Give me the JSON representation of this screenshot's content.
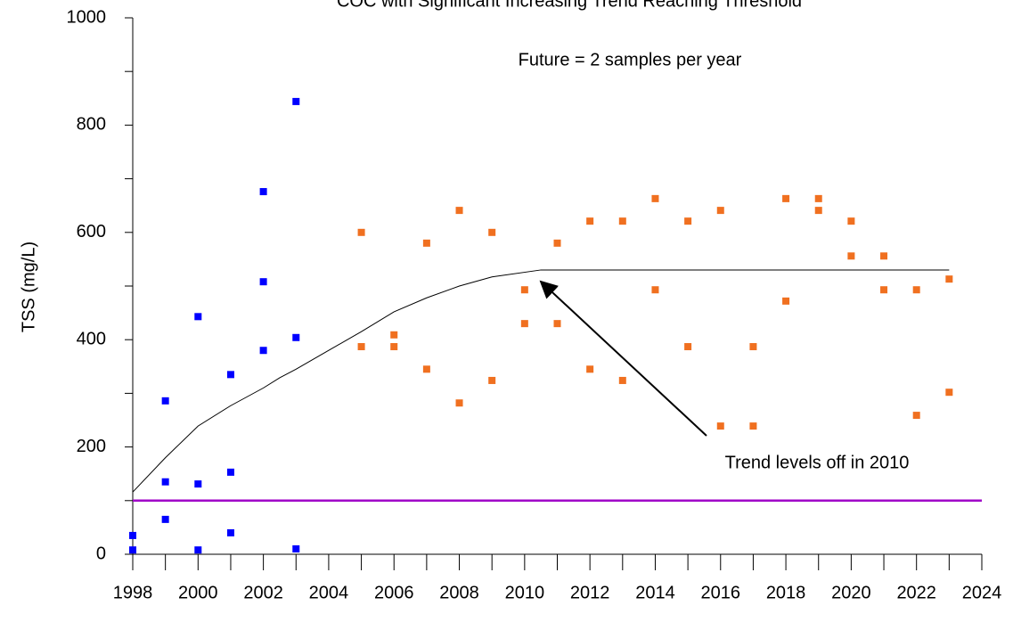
{
  "chart_data": {
    "type": "scatter",
    "title": "COC with Significant Increasing Trend Reaching Threshold",
    "y_label": "TSS (mg/L)",
    "annotations": [
      "Future = 2 samples per year",
      "Trend levels off in 2010"
    ],
    "xlim": [
      1998,
      2024
    ],
    "ylim": [
      0,
      1000
    ],
    "xticks": [
      1998,
      2000,
      2002,
      2004,
      2006,
      2008,
      2010,
      2012,
      2014,
      2016,
      2018,
      2020,
      2022,
      2024
    ],
    "xminorticks": [
      1999,
      2001,
      2003,
      2005,
      2007,
      2009,
      2011,
      2013,
      2015,
      2017,
      2019,
      2021,
      2023
    ],
    "yticks": [
      0,
      200,
      400,
      600,
      800,
      1000
    ],
    "yminorticks": [
      100,
      300,
      500,
      700,
      900
    ],
    "series": [
      {
        "mode": "markers",
        "color": "#0000ff",
        "x": [
          1998,
          1998,
          1999,
          1999,
          1999,
          2000,
          2000,
          2000,
          2001,
          2001,
          2001,
          2002,
          2002,
          2002,
          2003,
          2003,
          2003
        ],
        "values": [
          35,
          8,
          286,
          135,
          65,
          443,
          131,
          8,
          335,
          153,
          40,
          676,
          508,
          380,
          844,
          404,
          10
        ]
      },
      {
        "mode": "markers",
        "color": "#f07020",
        "x": [
          2005,
          2005,
          2006,
          2006,
          2007,
          2007,
          2008,
          2008,
          2009,
          2009,
          2010,
          2010,
          2011,
          2011,
          2012,
          2012,
          2013,
          2013,
          2014,
          2014,
          2015,
          2015,
          2016,
          2016,
          2017,
          2017,
          2018,
          2018,
          2019,
          2019,
          2020,
          2020,
          2021,
          2021,
          2022,
          2022,
          2023,
          2023
        ],
        "values": [
          600,
          387,
          409,
          387,
          580,
          345,
          641,
          282,
          600,
          324,
          493,
          430,
          580,
          430,
          621,
          345,
          621,
          324,
          663,
          493,
          621,
          387,
          641,
          239,
          387,
          239,
          663,
          472,
          663,
          641,
          621,
          556,
          556,
          493,
          493,
          259,
          513,
          302
        ]
      },
      {
        "mode": "line",
        "color": "#000000",
        "x": [
          1998,
          1999,
          2000,
          2001,
          2002,
          2002.5,
          2003,
          2004,
          2005,
          2006,
          2007,
          2008,
          2009,
          2010.5,
          2023
        ],
        "values": [
          116,
          180,
          239,
          277,
          310,
          329,
          345,
          380,
          415,
          452,
          478,
          500,
          517,
          530,
          530
        ]
      },
      {
        "mode": "line",
        "color": "#a000c8",
        "x": [
          1998,
          2024
        ],
        "values": [
          100,
          100
        ]
      }
    ]
  }
}
